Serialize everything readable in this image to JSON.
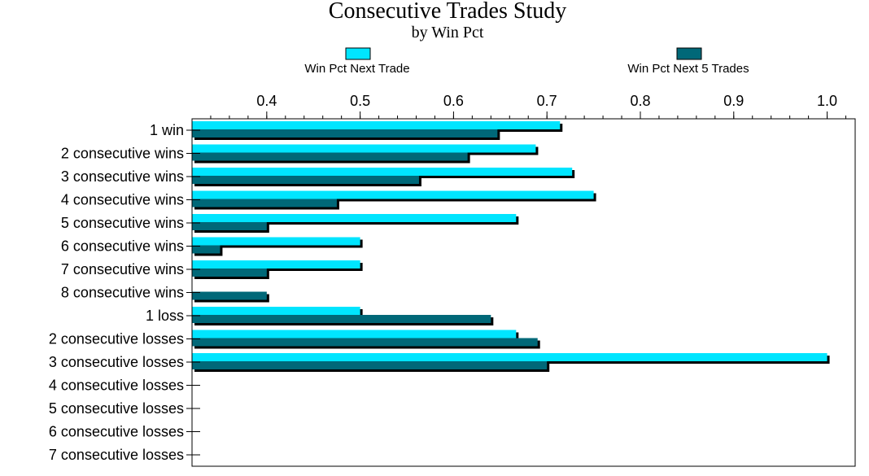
{
  "chart_data": {
    "type": "bar",
    "orientation": "horizontal",
    "title": "Consecutive Trades Study",
    "subtitle": "by Win Pct",
    "xlabel": "",
    "ylabel": "",
    "xlim": [
      0.32,
      1.03
    ],
    "ticks": [
      0.4,
      0.5,
      0.6,
      0.7,
      0.8,
      0.9,
      1.0
    ],
    "tick_labels": [
      "0.4",
      "0.5",
      "0.6",
      "0.7",
      "0.8",
      "0.9",
      "1.0"
    ],
    "legend_position": "top",
    "categories": [
      "1 win",
      "2 consecutive wins",
      "3 consecutive wins",
      "4 consecutive wins",
      "5 consecutive wins",
      "6 consecutive wins",
      "7 consecutive wins",
      "8 consecutive wins",
      "1 loss",
      "2 consecutive losses",
      "3 consecutive losses",
      "4 consecutive losses",
      "5 consecutive losses",
      "6 consecutive losses",
      "7 consecutive losses"
    ],
    "series": [
      {
        "name": "Win Pct Next Trade",
        "color": "#00e5ff",
        "values": [
          0.714,
          0.688,
          0.727,
          0.75,
          0.667,
          0.5,
          0.5,
          null,
          0.5,
          0.667,
          1.0,
          null,
          null,
          null,
          null
        ]
      },
      {
        "name": "Win Pct Next 5 Trades",
        "color": "#006878",
        "values": [
          0.647,
          0.615,
          0.563,
          0.475,
          0.4,
          0.35,
          0.4,
          0.4,
          0.64,
          0.69,
          0.7,
          null,
          null,
          null,
          null
        ]
      }
    ]
  },
  "colors": {
    "shadow": "#000000",
    "axis": "#000000"
  }
}
